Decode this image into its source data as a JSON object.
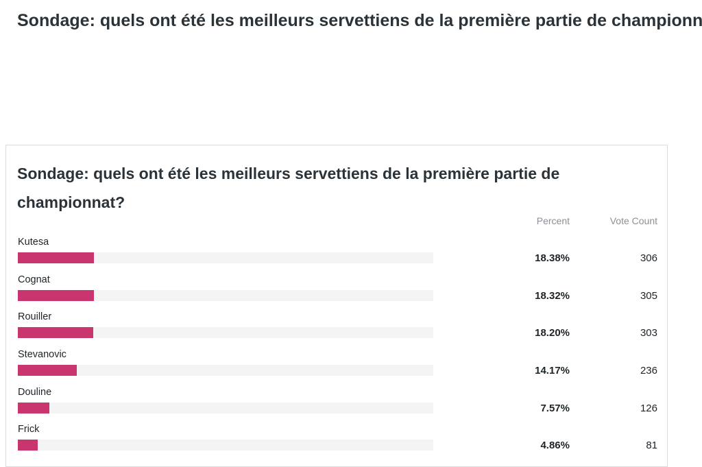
{
  "page": {
    "heading": "Sondage: quels ont été les meilleurs servettiens de la première partie de championnat?"
  },
  "poll": {
    "title": "Sondage: quels ont été les meilleurs servettiens de la première partie de championnat?",
    "percent_header": "Percent",
    "votes_header": "Vote Count",
    "bar_color": "#c9356e",
    "bar_track_color": "#f4f4f4",
    "scale_max_percent": 100,
    "options": [
      {
        "name": "Kutesa",
        "percent": "18.38%",
        "percent_value": 18.38,
        "votes": "306"
      },
      {
        "name": "Cognat",
        "percent": "18.32%",
        "percent_value": 18.32,
        "votes": "305"
      },
      {
        "name": "Rouiller",
        "percent": "18.20%",
        "percent_value": 18.2,
        "votes": "303"
      },
      {
        "name": "Stevanovic",
        "percent": "14.17%",
        "percent_value": 14.17,
        "votes": "236"
      },
      {
        "name": "Douline",
        "percent": "7.57%",
        "percent_value": 7.57,
        "votes": "126"
      },
      {
        "name": "Frick",
        "percent": "4.86%",
        "percent_value": 4.86,
        "votes": "81"
      }
    ]
  }
}
